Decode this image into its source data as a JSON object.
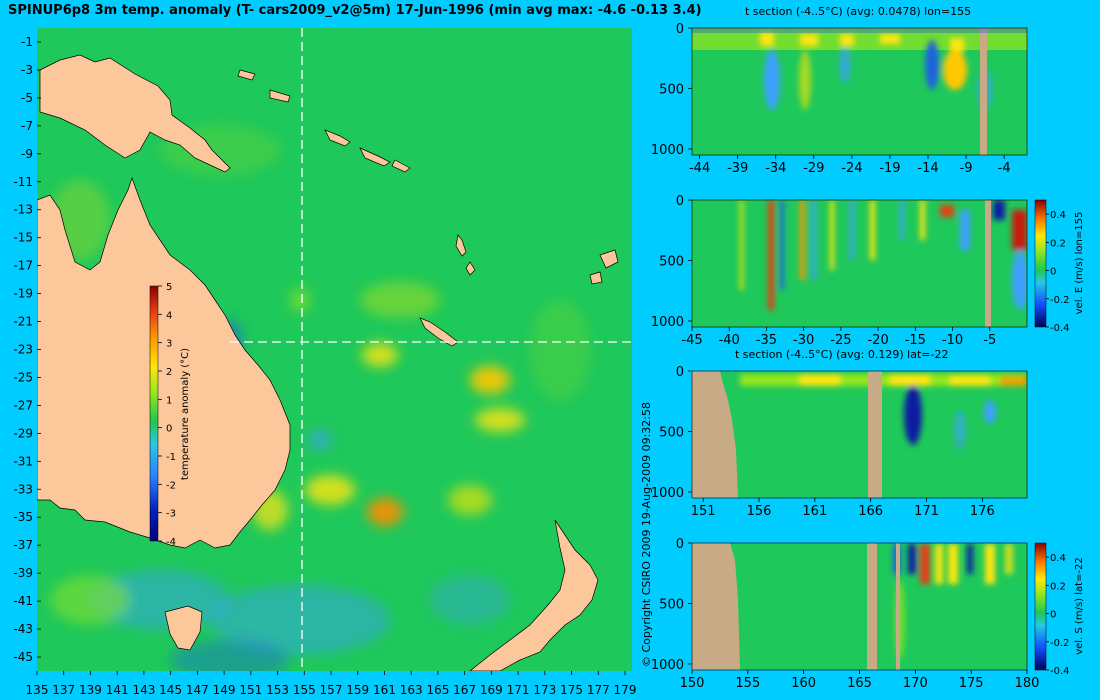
{
  "map": {
    "title": "SPINUP6p8 3m temp. anomaly (T- cars2009_v2@5m) 17-Jun-1996 (min avg max: -4.6 -0.13 3.4)",
    "colorbar_label": "temperature anomaly (°C)",
    "colorbar_ticks": [
      "5",
      "4",
      "3",
      "2",
      "1",
      "0",
      "-1",
      "-2",
      "-3",
      "-4"
    ],
    "lat_labels": [
      "-1",
      "-3",
      "-5",
      "-7",
      "-9",
      "-11",
      "-13",
      "-15",
      "-17",
      "-19",
      "-21",
      "-23",
      "-25",
      "-27",
      "-29",
      "-31",
      "-33",
      "-35",
      "-37",
      "-39",
      "-41",
      "-43",
      "-45"
    ],
    "lon_labels": [
      "135",
      "137",
      "139",
      "141",
      "143",
      "145",
      "147",
      "149",
      "151",
      "153",
      "155",
      "157",
      "159",
      "161",
      "163",
      "165",
      "167",
      "169",
      "171",
      "173",
      "175",
      "177",
      "179"
    ]
  },
  "copyright": "© Copyright CSIRO 2009   19-Aug-2009 09:32:58",
  "panels": [
    {
      "title": "t section (-4..5°C) (avg: 0.0478) lon=155",
      "y_ticks": [
        "0",
        "500",
        "1000"
      ],
      "x_ticks": [
        "-44",
        "-39",
        "-34",
        "-29",
        "-24",
        "-19",
        "-14",
        "-9",
        "-4"
      ],
      "side_label": ""
    },
    {
      "title": "",
      "y_ticks": [
        "0",
        "500",
        "1000"
      ],
      "x_ticks": [
        "-45",
        "-40",
        "-35",
        "-30",
        "-25",
        "-20",
        "-15",
        "-10",
        "-5"
      ],
      "side_label": "vel. E (m/s) lon=155",
      "colorbar_ticks": [
        "0.4",
        "0.2",
        "0",
        "-0.2",
        "-0.4"
      ]
    },
    {
      "title": "t section (-4..5°C) (avg: 0.129) lat=-22",
      "y_ticks": [
        "0",
        "500",
        "1000"
      ],
      "x_ticks": [
        "151",
        "156",
        "161",
        "166",
        "171",
        "176"
      ],
      "side_label": ""
    },
    {
      "title": "",
      "y_ticks": [
        "0",
        "500",
        "1000"
      ],
      "x_ticks": [
        "150",
        "155",
        "160",
        "165",
        "170",
        "175",
        "180"
      ],
      "side_label": "vel. S (m/s) lat=-22",
      "colorbar_ticks": [
        "0.4",
        "0.2",
        "0",
        "-0.2",
        "-0.4"
      ]
    }
  ],
  "chart_data": [
    {
      "type": "heatmap",
      "title": "SPINUP6p8 3m temp. anomaly (T- cars2009_v2@5m) 17-Jun-1996 (min avg max: -4.6 -0.13 3.4)",
      "xlabel": "",
      "ylabel": "",
      "xlim": [
        135,
        180
      ],
      "ylim": [
        -45,
        0
      ],
      "colorbar": {
        "label": "temperature anomaly (°C)",
        "range": [
          -4,
          5
        ]
      },
      "stats": {
        "min": -4.6,
        "avg": -0.13,
        "max": 3.4
      },
      "section_lines": {
        "lon": 155,
        "lat": -22
      }
    },
    {
      "type": "heatmap",
      "title": "t section (-4..5°C) (avg: 0.0478) lon=155",
      "xlim": [
        -45,
        -1
      ],
      "ylim": [
        1050,
        0
      ],
      "avg": 0.0478
    },
    {
      "type": "heatmap",
      "title": "",
      "xlim": [
        -45,
        0
      ],
      "ylim": [
        1050,
        0
      ],
      "colorbar": {
        "label": "vel. E (m/s) lon=155",
        "range": [
          -0.4,
          0.5
        ]
      }
    },
    {
      "type": "heatmap",
      "title": "t section (-4..5°C) (avg: 0.129) lat=-22",
      "xlim": [
        150,
        180
      ],
      "ylim": [
        1050,
        0
      ],
      "avg": 0.129
    },
    {
      "type": "heatmap",
      "title": "",
      "xlim": [
        150,
        180
      ],
      "ylim": [
        1050,
        0
      ],
      "colorbar": {
        "label": "vel. S (m/s) lat=-22",
        "range": [
          -0.4,
          0.5
        ]
      }
    }
  ],
  "colors": {
    "background": "#00ccff",
    "land": "#fcc89b",
    "section_land": "#c8aa87",
    "ocean": "#1fc85a",
    "warm": "#ffe60a",
    "hot": "#ff5a14",
    "cool": "#3ca0ff",
    "cold": "#0a1ea0"
  }
}
